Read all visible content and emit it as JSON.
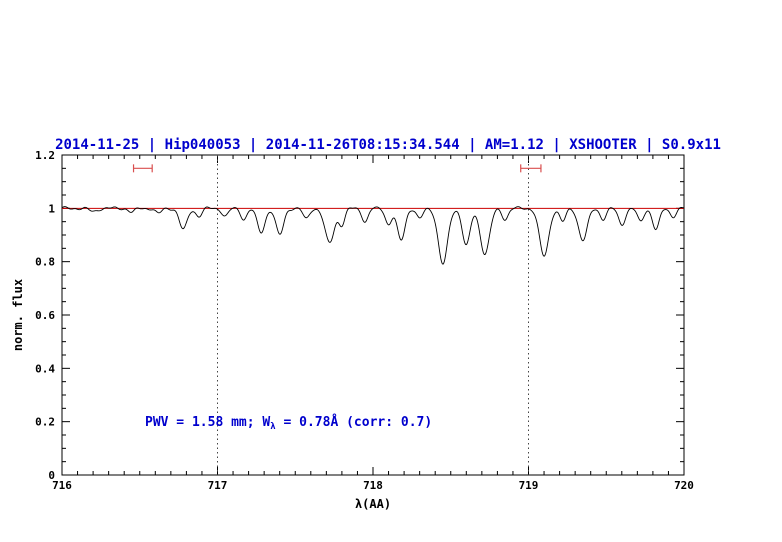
{
  "colors": {
    "title": "#0000cd",
    "annotation": "#0000cd",
    "spectrum": "#000000",
    "continuum": "#cc0000",
    "marker": "#d94f4f",
    "dotted": "#444444",
    "axis": "#000000",
    "background": "#ffffff"
  },
  "chart_data": {
    "type": "line",
    "title": "2014-11-25 | Hip040053 | 2014-11-26T08:15:34.544 | AM=1.12 | XSHOOTER | S0.9x11",
    "xlabel": "λ(AA)",
    "ylabel": "norm. flux",
    "xlim": [
      716,
      720
    ],
    "ylim": [
      0,
      1.2
    ],
    "xticks": [
      716,
      717,
      718,
      719,
      720
    ],
    "yticks": [
      0,
      0.2,
      0.4,
      0.6,
      0.8,
      1,
      1.2
    ],
    "ytick_labels": [
      "0",
      "0.2",
      "0.4",
      "0.6",
      "0.8",
      "1",
      "1.2"
    ],
    "grid": false,
    "legend": "none",
    "dotted_vlines": [
      717,
      719
    ],
    "continuum_y": 1.0,
    "range_markers": [
      {
        "x1": 716.46,
        "x2": 716.58,
        "y": 1.15
      },
      {
        "x1": 718.95,
        "x2": 719.08,
        "y": 1.15
      }
    ],
    "annotation": {
      "prefix": "PWV = 1.58 mm; W",
      "sub": "λ",
      "suffix": " = 0.78Å (corr: 0.7)",
      "x": 716.55,
      "y": 0.2
    },
    "absorption_lines": [
      {
        "c": 716.2,
        "d": 0.012,
        "s": 0.025
      },
      {
        "c": 716.45,
        "d": 0.015,
        "s": 0.02
      },
      {
        "c": 716.62,
        "d": 0.02,
        "s": 0.02
      },
      {
        "c": 716.78,
        "d": 0.08,
        "s": 0.025
      },
      {
        "c": 716.88,
        "d": 0.03,
        "s": 0.02
      },
      {
        "c": 717.05,
        "d": 0.03,
        "s": 0.02
      },
      {
        "c": 717.17,
        "d": 0.04,
        "s": 0.02
      },
      {
        "c": 717.28,
        "d": 0.09,
        "s": 0.025
      },
      {
        "c": 717.4,
        "d": 0.1,
        "s": 0.025
      },
      {
        "c": 717.57,
        "d": 0.04,
        "s": 0.02
      },
      {
        "c": 717.72,
        "d": 0.13,
        "s": 0.03
      },
      {
        "c": 717.8,
        "d": 0.06,
        "s": 0.02
      },
      {
        "c": 717.95,
        "d": 0.05,
        "s": 0.02
      },
      {
        "c": 718.1,
        "d": 0.06,
        "s": 0.02
      },
      {
        "c": 718.18,
        "d": 0.12,
        "s": 0.025
      },
      {
        "c": 718.3,
        "d": 0.04,
        "s": 0.02
      },
      {
        "c": 718.45,
        "d": 0.21,
        "s": 0.03
      },
      {
        "c": 718.6,
        "d": 0.14,
        "s": 0.025
      },
      {
        "c": 718.72,
        "d": 0.17,
        "s": 0.03
      },
      {
        "c": 718.85,
        "d": 0.04,
        "s": 0.02
      },
      {
        "c": 719.1,
        "d": 0.18,
        "s": 0.03
      },
      {
        "c": 719.22,
        "d": 0.05,
        "s": 0.02
      },
      {
        "c": 719.35,
        "d": 0.12,
        "s": 0.028
      },
      {
        "c": 719.48,
        "d": 0.04,
        "s": 0.02
      },
      {
        "c": 719.6,
        "d": 0.06,
        "s": 0.022
      },
      {
        "c": 719.72,
        "d": 0.05,
        "s": 0.02
      },
      {
        "c": 719.82,
        "d": 0.08,
        "s": 0.022
      },
      {
        "c": 719.93,
        "d": 0.03,
        "s": 0.02
      }
    ],
    "noise": {
      "amp1": 0.004,
      "freq1": 41.0,
      "amp2": 0.0025,
      "freq2": 97.0
    },
    "samples": 1100
  }
}
